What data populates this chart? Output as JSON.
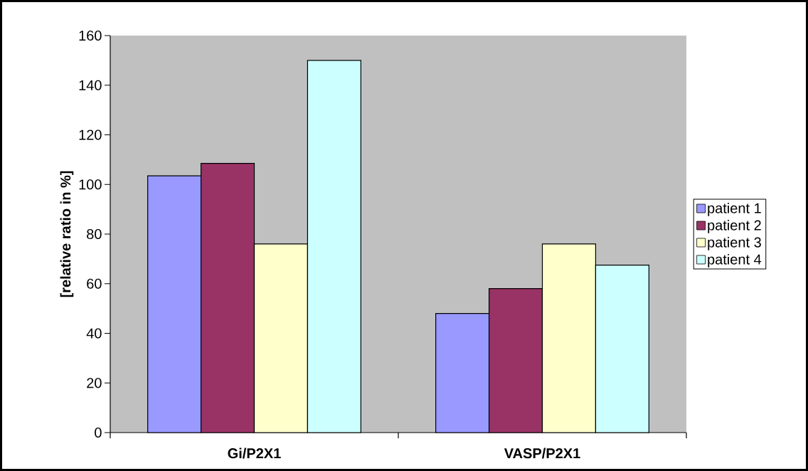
{
  "chart_data": {
    "type": "bar",
    "ylabel": "[relative ratio in %]",
    "categories": [
      "Gi/P2X1",
      "VASP/P2X1"
    ],
    "series": [
      {
        "name": "patient 1",
        "color": "#9999ff",
        "values": [
          103.5,
          48
        ]
      },
      {
        "name": "patient 2",
        "color": "#993366",
        "values": [
          108.5,
          58
        ]
      },
      {
        "name": "patient 3",
        "color": "#ffffcc",
        "values": [
          76,
          76
        ]
      },
      {
        "name": "patient 4",
        "color": "#ccffff",
        "values": [
          150,
          67.5
        ]
      }
    ],
    "ylim": [
      0,
      160
    ],
    "yticks": [
      0,
      20,
      40,
      60,
      80,
      100,
      120,
      140,
      160
    ],
    "grid": false,
    "legend": "right"
  }
}
